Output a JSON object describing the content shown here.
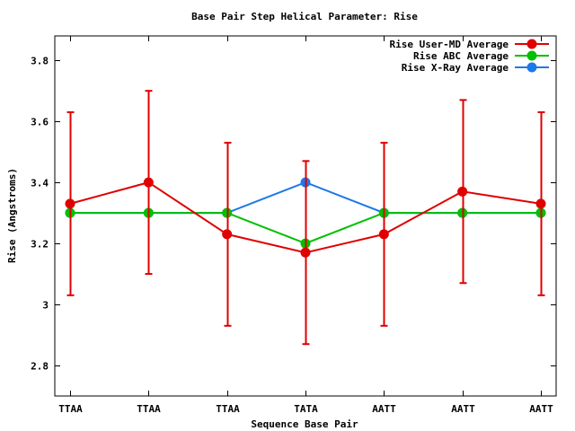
{
  "chart_data": {
    "type": "line",
    "title": "Base Pair Step Helical Parameter: Rise",
    "xlabel": "Sequence Base Pair",
    "ylabel": "Rise (Angstroms)",
    "categories": [
      "TTAA",
      "TTAA",
      "TTAA",
      "TATA",
      "AATT",
      "AATT",
      "AATT"
    ],
    "ylim": [
      2.7,
      3.88
    ],
    "yticks": [
      2.8,
      3,
      3.2,
      3.4,
      3.6,
      3.8
    ],
    "ytick_labels": [
      "2.8",
      "3",
      "3.2",
      "3.4",
      "3.6",
      "3.8"
    ],
    "grid": false,
    "legend_position": "top-right",
    "series": [
      {
        "name": "Rise User-MD Average",
        "color": "#e00000",
        "values": [
          3.33,
          3.4,
          3.23,
          3.17,
          3.23,
          3.37,
          3.33
        ],
        "error_low": [
          3.03,
          3.1,
          2.93,
          2.87,
          2.93,
          3.07,
          3.03
        ],
        "error_high": [
          3.63,
          3.7,
          3.53,
          3.47,
          3.53,
          3.67,
          3.63
        ]
      },
      {
        "name": "Rise ABC Average",
        "color": "#00c000",
        "values": [
          3.3,
          3.3,
          3.3,
          3.2,
          3.3,
          3.3,
          3.3
        ]
      },
      {
        "name": "Rise X-Ray Average",
        "color": "#1e78e8",
        "values": [
          3.3,
          3.3,
          3.3,
          3.4,
          3.3,
          3.3,
          3.3
        ]
      }
    ]
  }
}
